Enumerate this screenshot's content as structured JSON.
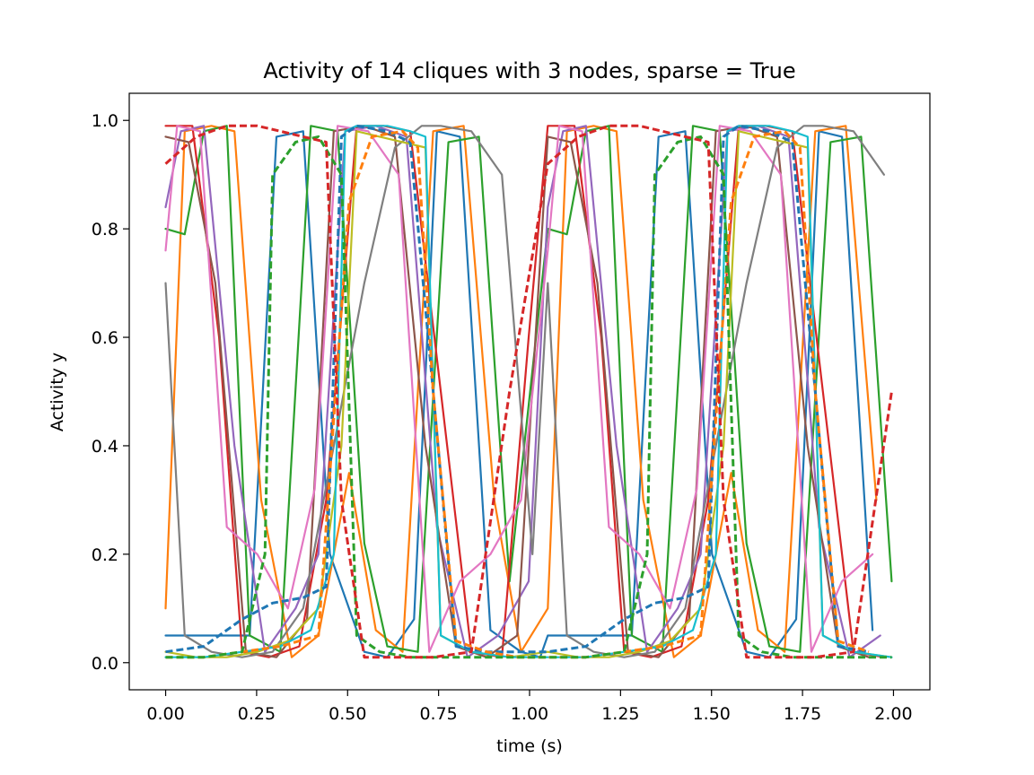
{
  "chart_data": {
    "type": "line",
    "title": "Activity of 14 cliques with 3 nodes, sparse = True",
    "xlabel": "time (s)",
    "ylabel": "Activity y",
    "xlim": [
      -0.1,
      2.1
    ],
    "ylim": [
      -0.05,
      1.05
    ],
    "xticks": [
      0.0,
      0.25,
      0.5,
      0.75,
      1.0,
      1.25,
      1.5,
      1.75,
      2.0
    ],
    "xtick_labels": [
      "0.00",
      "0.25",
      "0.50",
      "0.75",
      "1.00",
      "1.25",
      "1.50",
      "1.75",
      "2.00"
    ],
    "yticks": [
      0.0,
      0.2,
      0.4,
      0.6,
      0.8,
      1.0
    ],
    "ytick_labels": [
      "0.0",
      "0.2",
      "0.4",
      "0.6",
      "0.8",
      "1.0"
    ],
    "grid": false,
    "legend": "none",
    "periodic_cycle_s": 1.05,
    "series": [
      {
        "color": "#1f77b4",
        "dashed": false,
        "x": [
          0.0,
          0.22,
          0.29,
          0.36,
          0.43,
          0.52,
          0.58,
          0.65,
          0.71,
          0.77,
          0.85,
          0.93,
          0.98,
          1.0
        ],
        "y": [
          0.05,
          0.05,
          0.97,
          0.98,
          0.2,
          0.02,
          0.01,
          0.08,
          0.98,
          0.97,
          0.06,
          0.02,
          0.01,
          0.05
        ]
      },
      {
        "color": "#ff7f0e",
        "dashed": false,
        "x": [
          0.0,
          0.05,
          0.12,
          0.18,
          0.25,
          0.33,
          0.4,
          0.48,
          0.55,
          0.62,
          0.7,
          0.78,
          0.86,
          0.93,
          1.0
        ],
        "y": [
          0.1,
          0.98,
          0.99,
          0.98,
          0.3,
          0.01,
          0.05,
          0.35,
          0.06,
          0.02,
          0.98,
          0.99,
          0.3,
          0.02,
          0.1
        ]
      },
      {
        "color": "#2ca02c",
        "dashed": false,
        "x": [
          0.0,
          0.05,
          0.1,
          0.16,
          0.22,
          0.3,
          0.38,
          0.45,
          0.52,
          0.58,
          0.66,
          0.74,
          0.82,
          0.9,
          1.0
        ],
        "y": [
          0.8,
          0.79,
          0.98,
          0.99,
          0.05,
          0.02,
          0.99,
          0.98,
          0.22,
          0.03,
          0.02,
          0.96,
          0.97,
          0.15,
          0.8
        ]
      },
      {
        "color": "#d62728",
        "dashed": false,
        "x": [
          0.0,
          0.07,
          0.14,
          0.2,
          0.27,
          0.35,
          0.42,
          0.5,
          0.57,
          0.64,
          0.72,
          0.8,
          0.88,
          0.95,
          1.0
        ],
        "y": [
          0.99,
          0.99,
          0.6,
          0.02,
          0.01,
          0.03,
          0.3,
          0.99,
          0.99,
          0.98,
          0.5,
          0.02,
          0.01,
          0.6,
          0.99
        ]
      },
      {
        "color": "#9467bd",
        "dashed": false,
        "x": [
          0.0,
          0.04,
          0.1,
          0.18,
          0.26,
          0.34,
          0.4,
          0.47,
          0.55,
          0.63,
          0.71,
          0.79,
          0.87,
          0.95,
          1.0
        ],
        "y": [
          0.84,
          0.98,
          0.99,
          0.4,
          0.02,
          0.1,
          0.2,
          0.98,
          0.99,
          0.97,
          0.25,
          0.01,
          0.05,
          0.15,
          0.84
        ]
      },
      {
        "color": "#8c564b",
        "dashed": false,
        "x": [
          0.0,
          0.06,
          0.13,
          0.21,
          0.29,
          0.37,
          0.44,
          0.52,
          0.6,
          0.68,
          0.76,
          0.84,
          0.92,
          1.0
        ],
        "y": [
          0.97,
          0.96,
          0.7,
          0.02,
          0.01,
          0.08,
          0.98,
          0.99,
          0.97,
          0.4,
          0.03,
          0.01,
          0.05,
          0.97
        ]
      },
      {
        "color": "#e377c2",
        "dashed": false,
        "x": [
          0.0,
          0.03,
          0.09,
          0.16,
          0.24,
          0.32,
          0.39,
          0.45,
          0.53,
          0.61,
          0.69,
          0.77,
          0.85,
          0.93,
          1.0
        ],
        "y": [
          0.76,
          0.99,
          0.98,
          0.25,
          0.2,
          0.1,
          0.32,
          0.99,
          0.98,
          0.9,
          0.02,
          0.15,
          0.2,
          0.3,
          0.76
        ]
      },
      {
        "color": "#7f7f7f",
        "dashed": false,
        "x": [
          0.0,
          0.05,
          0.12,
          0.2,
          0.28,
          0.36,
          0.44,
          0.52,
          0.6,
          0.67,
          0.72,
          0.8,
          0.88,
          0.96,
          1.0
        ],
        "y": [
          0.7,
          0.05,
          0.02,
          0.01,
          0.02,
          0.1,
          0.4,
          0.7,
          0.95,
          0.99,
          0.99,
          0.98,
          0.9,
          0.2,
          0.7
        ]
      },
      {
        "color": "#bcbd22",
        "dashed": false,
        "x": [
          0.0,
          0.08,
          0.16,
          0.24,
          0.32,
          0.4,
          0.46,
          0.5,
          0.56,
          0.62,
          0.68,
          0.72,
          0.8,
          0.9,
          1.0
        ],
        "y": [
          0.02,
          0.01,
          0.01,
          0.02,
          0.04,
          0.1,
          0.4,
          0.98,
          0.97,
          0.96,
          0.95,
          0.05,
          0.02,
          0.01,
          0.02
        ]
      },
      {
        "color": "#17becf",
        "dashed": false,
        "x": [
          0.0,
          0.1,
          0.2,
          0.3,
          0.38,
          0.44,
          0.47,
          0.5,
          0.58,
          0.64,
          0.68,
          0.72,
          0.8,
          0.9,
          1.0
        ],
        "y": [
          0.01,
          0.01,
          0.02,
          0.03,
          0.06,
          0.2,
          0.98,
          0.99,
          0.99,
          0.98,
          0.97,
          0.05,
          0.02,
          0.01,
          0.01
        ]
      },
      {
        "color": "#1f77b4",
        "dashed": true,
        "x": [
          0.0,
          0.1,
          0.2,
          0.28,
          0.36,
          0.42,
          0.46,
          0.5,
          0.58,
          0.64,
          0.7,
          0.76,
          0.84,
          0.92,
          1.0
        ],
        "y": [
          0.02,
          0.03,
          0.08,
          0.11,
          0.12,
          0.14,
          0.97,
          0.99,
          0.98,
          0.96,
          0.5,
          0.03,
          0.02,
          0.02,
          0.02
        ]
      },
      {
        "color": "#ff7f0e",
        "dashed": true,
        "x": [
          0.0,
          0.1,
          0.2,
          0.3,
          0.4,
          0.48,
          0.54,
          0.62,
          0.66,
          0.7,
          0.76,
          0.84,
          0.92,
          1.0
        ],
        "y": [
          0.01,
          0.01,
          0.02,
          0.03,
          0.05,
          0.85,
          0.97,
          0.98,
          0.95,
          0.5,
          0.04,
          0.02,
          0.01,
          0.01
        ]
      },
      {
        "color": "#2ca02c",
        "dashed": true,
        "x": [
          0.0,
          0.1,
          0.2,
          0.26,
          0.28,
          0.34,
          0.4,
          0.46,
          0.5,
          0.56,
          0.64,
          0.72,
          0.8,
          0.9,
          1.0
        ],
        "y": [
          0.01,
          0.01,
          0.02,
          0.2,
          0.9,
          0.96,
          0.97,
          0.9,
          0.05,
          0.02,
          0.01,
          0.01,
          0.01,
          0.01,
          0.01
        ]
      },
      {
        "color": "#d62728",
        "dashed": true,
        "x": [
          0.0,
          0.08,
          0.16,
          0.24,
          0.3,
          0.36,
          0.42,
          0.46,
          0.52,
          0.6,
          0.7,
          0.8,
          0.9,
          1.0
        ],
        "y": [
          0.92,
          0.97,
          0.99,
          0.99,
          0.98,
          0.97,
          0.96,
          0.3,
          0.01,
          0.01,
          0.01,
          0.02,
          0.5,
          0.92
        ]
      }
    ]
  }
}
